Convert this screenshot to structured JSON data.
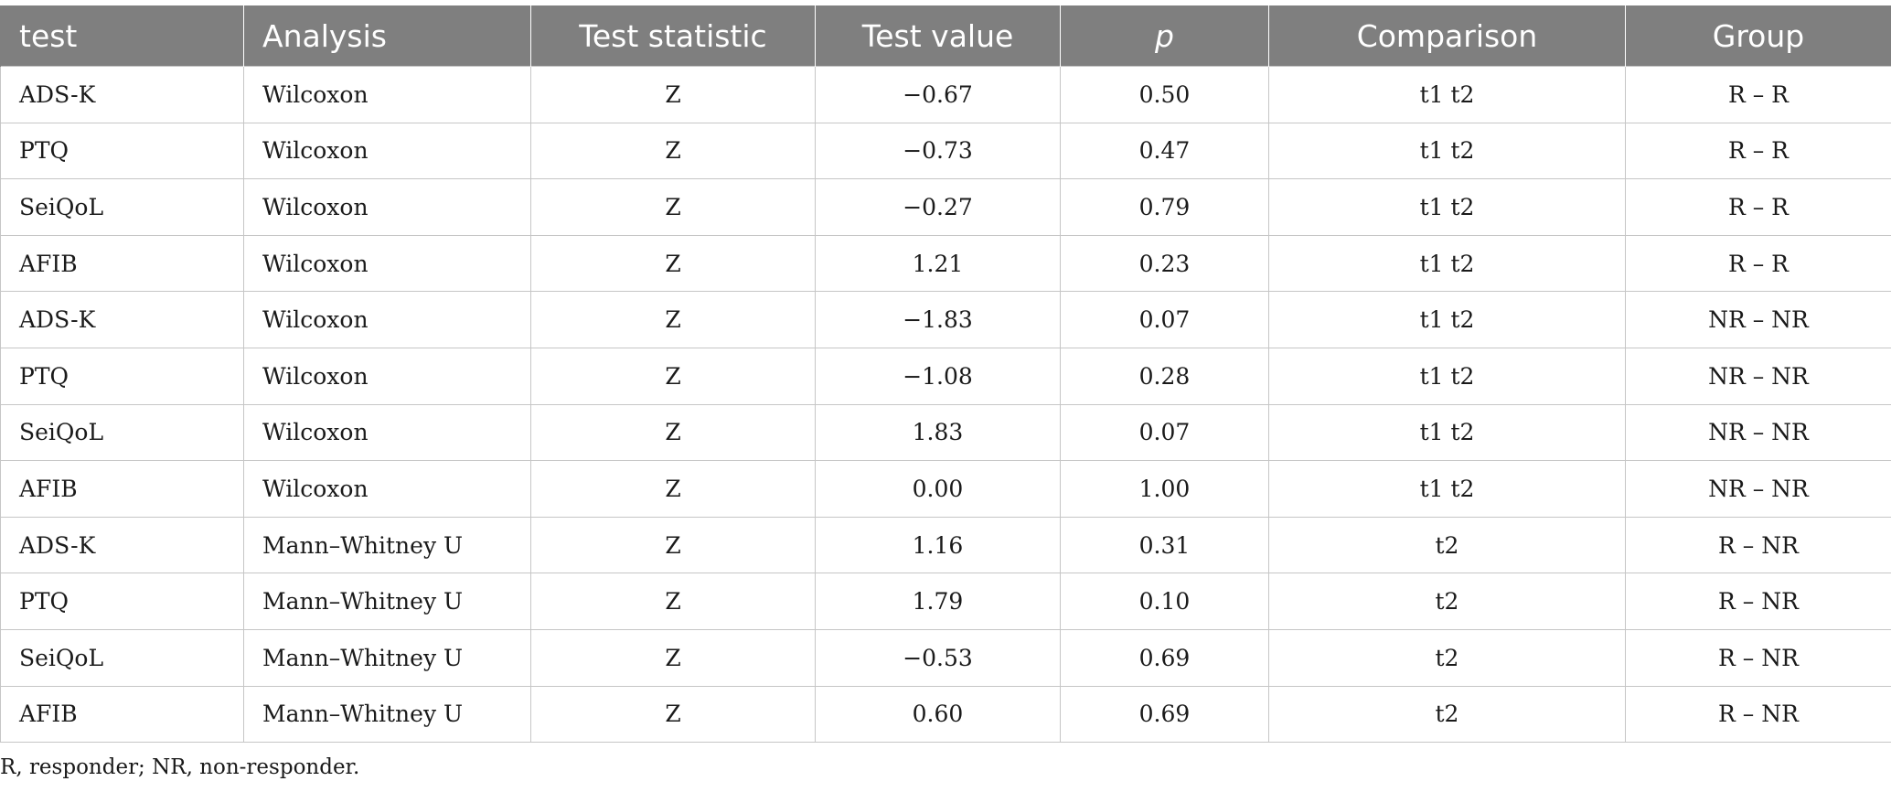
{
  "table": {
    "headers": [
      "test",
      "Analysis",
      "Test statistic",
      "Test value",
      "p",
      "Comparison",
      "Group"
    ],
    "rows": [
      [
        "ADS-K",
        "Wilcoxon",
        "Z",
        "−0.67",
        "0.50",
        "t1 t2",
        "R – R"
      ],
      [
        "PTQ",
        "Wilcoxon",
        "Z",
        "−0.73",
        "0.47",
        "t1 t2",
        "R – R"
      ],
      [
        "SeiQoL",
        "Wilcoxon",
        "Z",
        "−0.27",
        "0.79",
        "t1 t2",
        "R – R"
      ],
      [
        "AFIB",
        "Wilcoxon",
        "Z",
        "1.21",
        "0.23",
        "t1 t2",
        "R – R"
      ],
      [
        "ADS-K",
        "Wilcoxon",
        "Z",
        "−1.83",
        "0.07",
        "t1 t2",
        "NR – NR"
      ],
      [
        "PTQ",
        "Wilcoxon",
        "Z",
        "−1.08",
        "0.28",
        "t1 t2",
        "NR – NR"
      ],
      [
        "SeiQoL",
        "Wilcoxon",
        "Z",
        "1.83",
        "0.07",
        "t1 t2",
        "NR – NR"
      ],
      [
        "AFIB",
        "Wilcoxon",
        "Z",
        "0.00",
        "1.00",
        "t1 t2",
        "NR – NR"
      ],
      [
        "ADS-K",
        "Mann–Whitney U",
        "Z",
        "1.16",
        "0.31",
        "t2",
        "R – NR"
      ],
      [
        "PTQ",
        "Mann–Whitney U",
        "Z",
        "1.79",
        "0.10",
        "t2",
        "R – NR"
      ],
      [
        "SeiQoL",
        "Mann–Whitney U",
        "Z",
        "−0.53",
        "0.69",
        "t2",
        "R – NR"
      ],
      [
        "AFIB",
        "Mann–Whitney U",
        "Z",
        "0.60",
        "0.69",
        "t2",
        "R – NR"
      ]
    ]
  },
  "footnote": "R, responder; NR, non-responder."
}
